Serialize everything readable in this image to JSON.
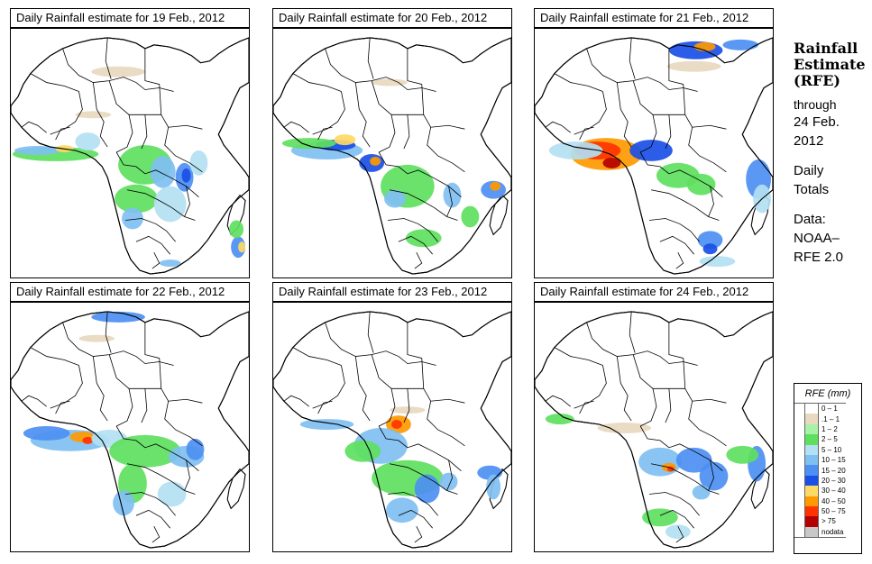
{
  "panels": [
    {
      "title": "Daily Rainfall estimate for  19 Feb., 2012",
      "date": "19 Feb."
    },
    {
      "title": "Daily Rainfall estimate for  20 Feb., 2012",
      "date": "20 Feb."
    },
    {
      "title": "Daily Rainfall estimate for  21 Feb., 2012",
      "date": "21 Feb."
    },
    {
      "title": "Daily Rainfall estimate for  22 Feb., 2012",
      "date": "22 Feb."
    },
    {
      "title": "Daily Rainfall estimate for  23 Feb., 2012",
      "date": "23 Feb."
    },
    {
      "title": "Daily Rainfall estimate for  24 Feb., 2012",
      "date": "24 Feb."
    }
  ],
  "side": {
    "title_1": "Rainfall",
    "title_2": "Estimate",
    "title_3": "(RFE)",
    "through": "through",
    "date_1": "24 Feb.",
    "date_2": "2012",
    "daily_1": "Daily",
    "daily_2": "Totals",
    "data_label": "Data:",
    "data_1": "NOAA–",
    "data_2": "RFE 2.0"
  },
  "legend": {
    "title": "RFE (mm)",
    "items": [
      {
        "label": "0 – 1",
        "color": "#ffffff"
      },
      {
        "label": ".1 – 1",
        "color": "#e8d9bf"
      },
      {
        "label": "1 – 2",
        "color": "#a6f2a6"
      },
      {
        "label": "2 – 5",
        "color": "#5ee05e"
      },
      {
        "label": "5 – 10",
        "color": "#b3e0f2"
      },
      {
        "label": "10 – 15",
        "color": "#80bff2"
      },
      {
        "label": "15 – 20",
        "color": "#4d8ff2"
      },
      {
        "label": "20 – 30",
        "color": "#1a4fe6"
      },
      {
        "label": "30 – 40",
        "color": "#ffd966"
      },
      {
        "label": "40 – 50",
        "color": "#ff9900"
      },
      {
        "label": "50 – 75",
        "color": "#ff3300"
      },
      {
        "label": "> 75",
        "color": "#b30000"
      },
      {
        "label": "nodata",
        "color": "#c8c8c8"
      }
    ]
  }
}
